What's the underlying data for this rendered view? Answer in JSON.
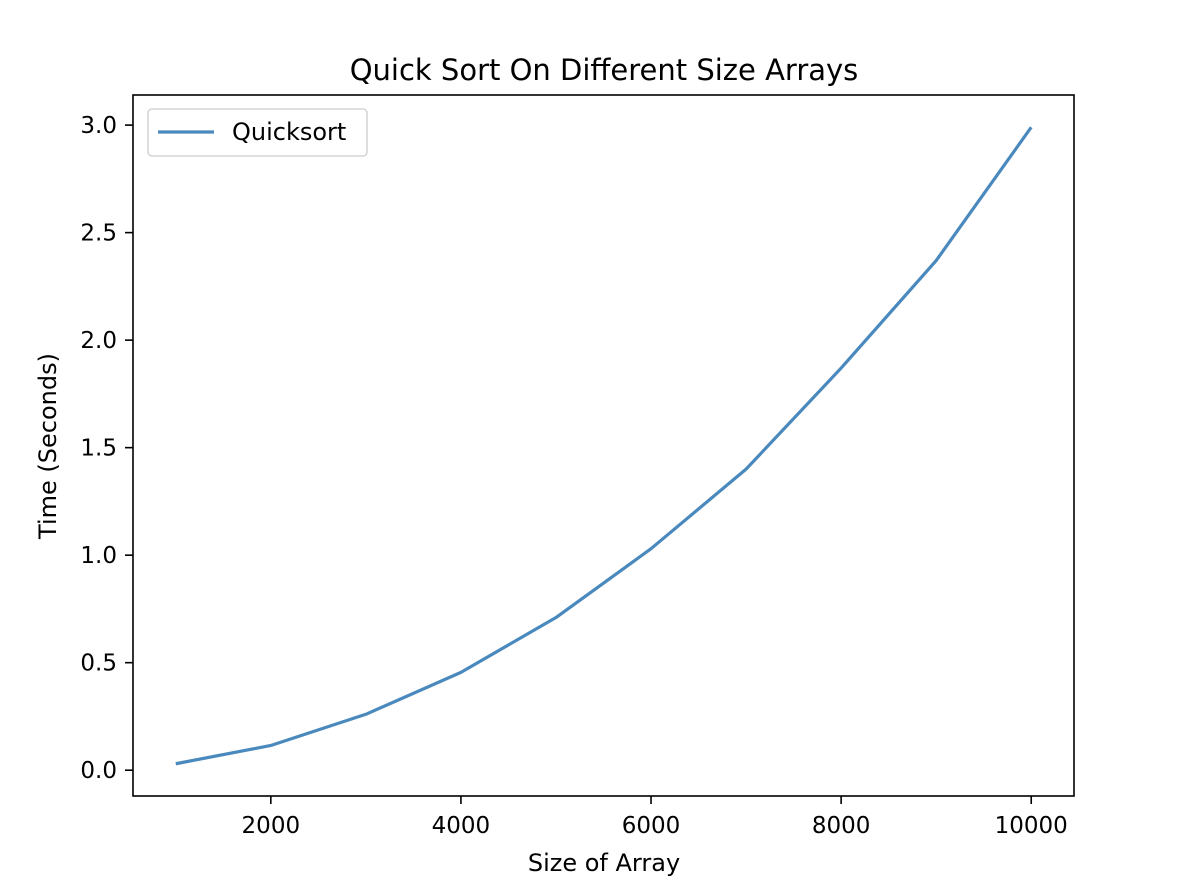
{
  "chart_data": {
    "type": "line",
    "title": "Quick Sort On Different Size Arrays",
    "xlabel": "Size of Array",
    "ylabel": "Time (Seconds)",
    "xlim": [
      550,
      10450
    ],
    "ylim": [
      -0.12,
      3.14
    ],
    "x_ticks": [
      2000,
      4000,
      6000,
      8000,
      10000
    ],
    "y_ticks": [
      0.0,
      0.5,
      1.0,
      1.5,
      2.0,
      2.5,
      3.0
    ],
    "x_tick_labels": [
      "2000",
      "4000",
      "6000",
      "8000",
      "10000"
    ],
    "y_tick_labels": [
      "0.0",
      "0.5",
      "1.0",
      "1.5",
      "2.0",
      "2.5",
      "3.0"
    ],
    "grid": false,
    "legend": {
      "position": "top-left",
      "entries": [
        "Quicksort"
      ]
    },
    "series": [
      {
        "name": "Quicksort",
        "color": "#4a89bd",
        "x": [
          1000,
          2000,
          3000,
          4000,
          5000,
          6000,
          7000,
          8000,
          9000,
          10000
        ],
        "y": [
          0.03,
          0.115,
          0.26,
          0.455,
          0.71,
          1.03,
          1.4,
          1.87,
          2.37,
          2.99
        ]
      }
    ]
  }
}
